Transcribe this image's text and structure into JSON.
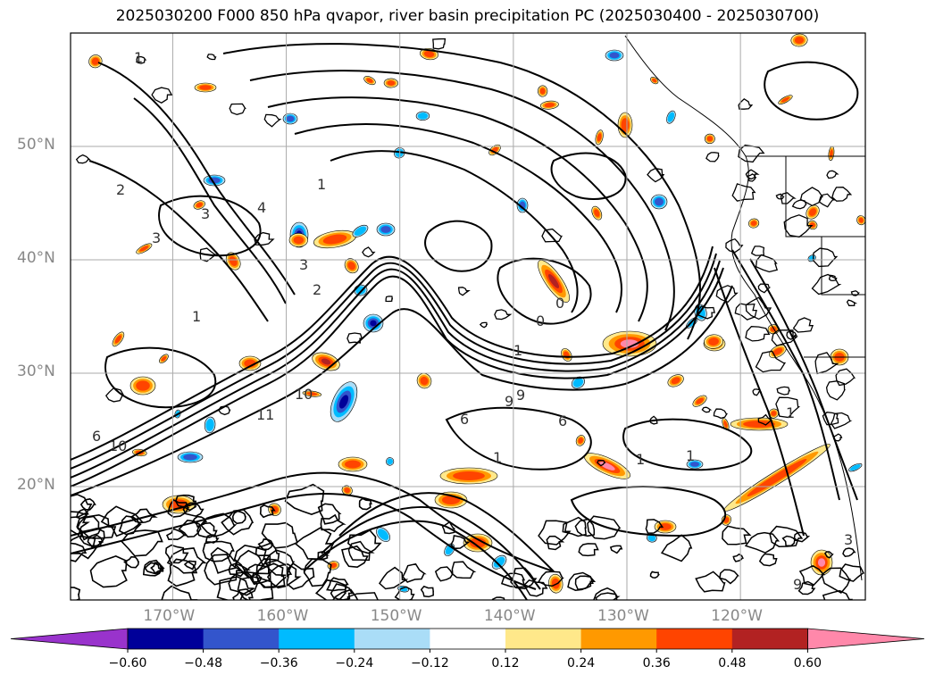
{
  "title": "2025030200 F000 850 hPa qvapor, river basin precipitation PC (2025030400 - 2025030700)",
  "map": {
    "projection": "lat-lon",
    "lon_range_deg": [
      -179,
      -109
    ],
    "lat_range_deg": [
      10,
      60
    ],
    "gridlines": true,
    "lat_labels": [
      "50°N",
      "40°N",
      "30°N",
      "20°N"
    ],
    "lon_labels": [
      "170°W",
      "160°W",
      "150°W",
      "140°W",
      "130°W",
      "120°W"
    ],
    "contour_labels": [
      "1",
      "1",
      "3",
      "2",
      "3",
      "4",
      "1",
      "2",
      "3",
      "1",
      "0",
      "0",
      "9",
      "10",
      "11",
      "6",
      "10",
      "9",
      "6",
      "1",
      "1",
      "1",
      "1",
      "9",
      "6",
      "3"
    ]
  },
  "colorbar": {
    "extend": "both",
    "colors": [
      "#9933cc",
      "#000099",
      "#3355cc",
      "#00bbff",
      "#aaddf7",
      "#ffffff",
      "#ffe88a",
      "#ff9900",
      "#ff4400",
      "#b22222",
      "#ff88aa"
    ],
    "ticks": [
      "−0.60",
      "−0.48",
      "−0.36",
      "−0.24",
      "−0.12",
      "0.12",
      "0.24",
      "0.36",
      "0.48",
      "0.60"
    ]
  },
  "colors": {
    "contour": "#000000",
    "grid": "#aaaaaa",
    "label": "#888888"
  }
}
